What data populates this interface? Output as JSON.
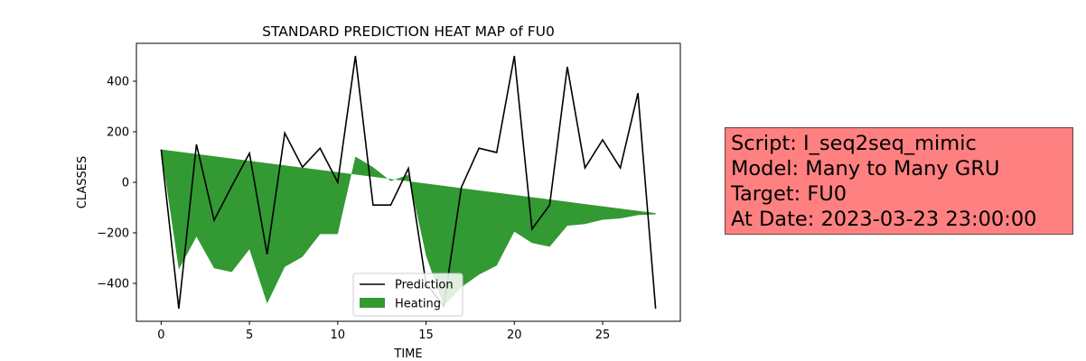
{
  "chart_data": {
    "type": "line",
    "title": "STANDARD PREDICTION HEAT MAP of FU0",
    "xlabel": "TIME",
    "ylabel": "CLASSES",
    "xlim": [
      -1.4,
      29.4
    ],
    "ylim": [
      -550,
      550
    ],
    "xticks": [
      0,
      5,
      10,
      15,
      20,
      25
    ],
    "yticks": [
      -400,
      -200,
      0,
      200,
      400
    ],
    "xtick_labels": [
      "0",
      "5",
      "10",
      "15",
      "20",
      "25"
    ],
    "ytick_labels": [
      "−400",
      "−200",
      "0",
      "200",
      "400"
    ],
    "grid": false,
    "legend_position": "lower-center",
    "x": [
      0,
      1,
      2,
      3,
      4,
      5,
      6,
      7,
      8,
      9,
      10,
      11,
      12,
      13,
      14,
      15,
      16,
      17,
      18,
      19,
      20,
      21,
      22,
      23,
      24,
      25,
      26,
      27,
      28
    ],
    "series": [
      {
        "name": "Prediction",
        "kind": "line",
        "color": "#000000",
        "values": [
          130,
          -500,
          150,
          -150,
          -15,
          115,
          -285,
          195,
          60,
          135,
          0,
          500,
          -90,
          -90,
          55,
          -400,
          -490,
          -20,
          135,
          118,
          500,
          -185,
          -90,
          457,
          57,
          168,
          57,
          353,
          -500
        ]
      },
      {
        "name": "Heating",
        "kind": "fill_between",
        "color": "#339933",
        "baseline": [
          130,
          121,
          112,
          103,
          94,
          85,
          76,
          67,
          58,
          49,
          40,
          31,
          22,
          13,
          4,
          -5,
          -14,
          -23,
          -32,
          -41,
          -50,
          -59,
          -68,
          -77,
          -86,
          -95,
          -104,
          -113,
          -122
        ],
        "values": [
          130,
          -345,
          -215,
          -340,
          -355,
          -265,
          -480,
          -335,
          -295,
          -205,
          -205,
          102,
          60,
          5,
          30,
          -290,
          -490,
          -415,
          -365,
          -330,
          -195,
          -240,
          -255,
          -172,
          -165,
          -148,
          -143,
          -130,
          -127
        ]
      }
    ]
  },
  "info_box": {
    "background": "#ff8080",
    "lines": [
      "Script: I_seq2seq_mimic",
      "Model: Many to Many GRU",
      "Target: FU0",
      "At Date: 2023-03-23 23:00:00"
    ]
  }
}
